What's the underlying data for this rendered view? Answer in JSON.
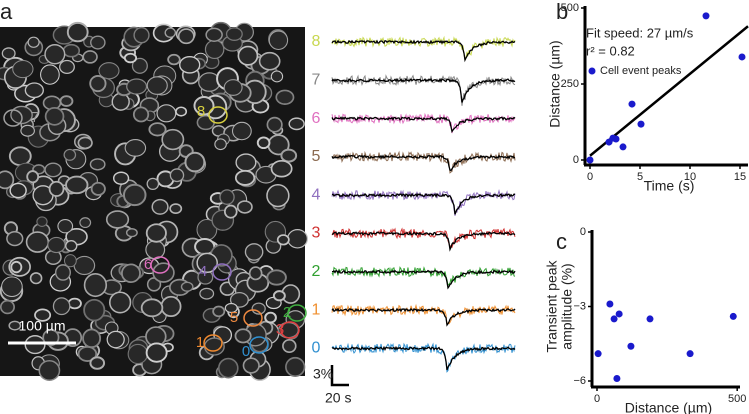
{
  "panel_labels": [
    "a",
    "b",
    "c"
  ],
  "image": {
    "scale_bar": "100 µm",
    "rois": [
      {
        "label": "7",
        "color": "#a0a0a0"
      },
      {
        "label": "8",
        "color": "#d8d040"
      },
      {
        "label": "6",
        "color": "#e070c0"
      },
      {
        "label": "4",
        "color": "#9070c0"
      },
      {
        "label": "5",
        "color": "#f08a40"
      },
      {
        "label": "2",
        "color": "#40b040"
      },
      {
        "label": "3",
        "color": "#e04040"
      },
      {
        "label": "1",
        "color": "#f08a30"
      },
      {
        "label": "0",
        "color": "#3090d0"
      }
    ]
  },
  "traces": {
    "labels": [
      "8",
      "7",
      "6",
      "5",
      "4",
      "3",
      "2",
      "1",
      "0"
    ],
    "colors": [
      "#c8d850",
      "#888888",
      "#e070c0",
      "#8b6a50",
      "#9070c0",
      "#d03030",
      "#30a030",
      "#f09030",
      "#3090d0"
    ],
    "scale_y": "3%",
    "scale_x": "20 s"
  },
  "chart_data": [
    {
      "type": "scatter",
      "x_label": "Time (s)",
      "y_label": "Distance (µm)",
      "annotations": [
        "Fit speed: 27 µm/s",
        "r² = 0.82"
      ],
      "series": [
        {
          "name": "Cell event peaks",
          "color": "#1a1acc",
          "x": [
            0,
            1.9,
            2.3,
            2.6,
            3.3,
            4.2,
            5.1,
            11.6,
            15.2
          ],
          "values": [
            0,
            59,
            72,
            69,
            43,
            184,
            118,
            474,
            339
          ]
        }
      ],
      "fit": {
        "x": [
          0,
          15.8
        ],
        "y": [
          14,
          440
        ]
      },
      "xlim": [
        0,
        15.8
      ],
      "ylim": [
        0,
        500
      ],
      "xticks": [
        0,
        5,
        10,
        15
      ],
      "yticks": [
        0,
        250,
        500
      ]
    },
    {
      "type": "scatter",
      "x_label": "Distance (µm)",
      "y_label": [
        "Transient peak",
        "amplitude (%)"
      ],
      "series": [
        {
          "name": null,
          "color": "#1a1acc",
          "x": [
            4,
            46,
            61,
            79,
            121,
            71,
            189,
            332,
            486
          ],
          "values": [
            -4.9,
            -2.9,
            -3.5,
            -3.3,
            -4.6,
            -5.9,
            -3.5,
            -4.9,
            -3.4
          ]
        }
      ],
      "xlim": [
        0,
        510
      ],
      "ylim": [
        -6,
        0
      ],
      "xticks": [
        0,
        500
      ],
      "yticks": [
        {
          "value": -6,
          "label": "−6"
        },
        {
          "value": -3,
          "label": "−3"
        },
        0
      ]
    }
  ]
}
